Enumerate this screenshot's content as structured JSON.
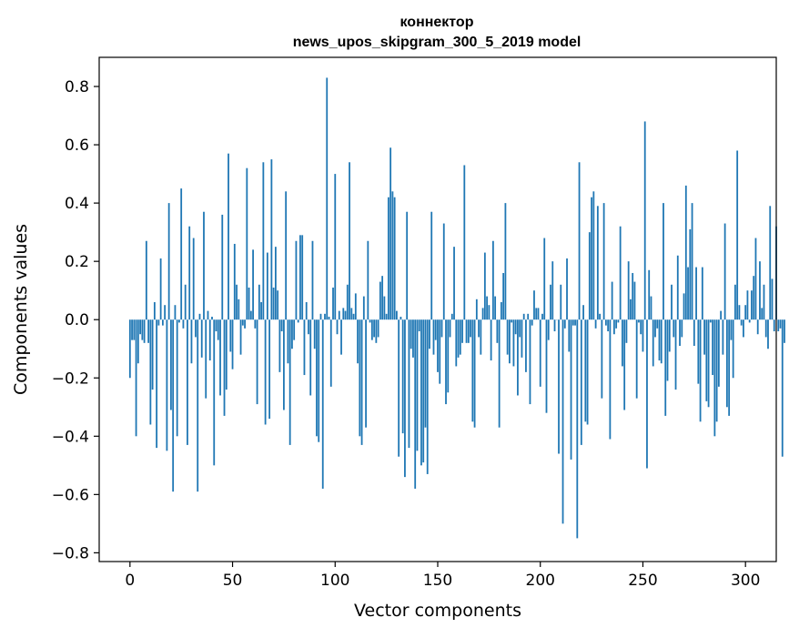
{
  "chart_data": {
    "type": "bar",
    "title_line1": "коннектор",
    "title_line2": "news_upos_skipgram_300_5_2019 model",
    "xlabel": "Vector components",
    "ylabel": "Components values",
    "xlim": [
      -15,
      315
    ],
    "ylim": [
      -0.83,
      0.9
    ],
    "xticks": [
      0,
      50,
      100,
      150,
      200,
      250,
      300
    ],
    "yticks": [
      -0.8,
      -0.6,
      -0.4,
      -0.2,
      0.0,
      0.2,
      0.4,
      0.6,
      0.8
    ],
    "ytick_labels": [
      "−0.8",
      "−0.6",
      "−0.4",
      "−0.2",
      "0.0",
      "0.2",
      "0.4",
      "0.6",
      "0.8"
    ],
    "bar_color": "#1f77b4",
    "grid": false,
    "values": [
      -0.2,
      -0.07,
      -0.07,
      -0.4,
      -0.15,
      -0.05,
      -0.07,
      -0.08,
      0.27,
      -0.08,
      -0.36,
      -0.24,
      0.06,
      -0.44,
      -0.02,
      0.21,
      -0.02,
      0.05,
      -0.45,
      0.4,
      -0.31,
      -0.59,
      0.05,
      -0.4,
      -0.01,
      0.45,
      -0.03,
      0.12,
      -0.43,
      0.32,
      -0.15,
      0.28,
      -0.06,
      -0.59,
      0.02,
      -0.13,
      0.37,
      -0.27,
      0.03,
      -0.14,
      0.01,
      -0.5,
      -0.04,
      -0.07,
      -0.26,
      0.36,
      -0.33,
      -0.24,
      0.57,
      -0.11,
      -0.17,
      0.26,
      0.12,
      0.07,
      -0.12,
      -0.02,
      -0.03,
      0.52,
      0.11,
      0.03,
      0.24,
      -0.03,
      -0.29,
      0.12,
      0.06,
      0.54,
      -0.36,
      0.23,
      -0.34,
      0.55,
      0.11,
      0.25,
      0.1,
      -0.18,
      -0.04,
      -0.31,
      0.44,
      -0.15,
      -0.43,
      -0.1,
      -0.07,
      0.27,
      -0.01,
      0.29,
      0.29,
      -0.19,
      0.06,
      -0.05,
      -0.26,
      0.27,
      -0.1,
      -0.4,
      -0.42,
      0.02,
      -0.58,
      0.02,
      0.83,
      0.01,
      -0.23,
      0.11,
      0.5,
      -0.05,
      0.03,
      -0.12,
      0.04,
      0.03,
      0.12,
      0.54,
      0.04,
      0.02,
      0.09,
      -0.15,
      -0.4,
      -0.43,
      0.08,
      -0.37,
      0.27,
      -0.01,
      -0.07,
      -0.06,
      -0.08,
      -0.06,
      0.13,
      0.15,
      0.08,
      0.02,
      0.42,
      0.59,
      0.44,
      0.42,
      0.03,
      -0.47,
      0.01,
      -0.39,
      -0.54,
      0.37,
      -0.44,
      -0.1,
      -0.13,
      -0.58,
      -0.45,
      -0.04,
      -0.5,
      -0.49,
      -0.37,
      -0.53,
      -0.1,
      0.37,
      -0.12,
      -0.07,
      -0.18,
      -0.22,
      -0.06,
      0.33,
      -0.29,
      -0.25,
      -0.06,
      0.02,
      0.25,
      -0.16,
      -0.13,
      -0.12,
      -0.08,
      0.53,
      -0.08,
      -0.08,
      -0.06,
      -0.35,
      -0.37,
      0.07,
      -0.06,
      -0.12,
      0.04,
      0.23,
      0.08,
      0.05,
      -0.14,
      0.27,
      0.08,
      -0.08,
      -0.37,
      0.06,
      0.16,
      0.4,
      -0.12,
      -0.15,
      -0.01,
      -0.16,
      -0.05,
      -0.26,
      -0.06,
      -0.13,
      0.02,
      -0.18,
      0.02,
      -0.29,
      -0.02,
      0.1,
      0.04,
      0.04,
      -0.23,
      0.02,
      0.28,
      -0.32,
      -0.07,
      0.12,
      0.2,
      -0.04,
      0.0,
      -0.46,
      0.12,
      -0.7,
      -0.03,
      0.21,
      -0.11,
      -0.48,
      -0.02,
      -0.02,
      -0.75,
      0.54,
      -0.43,
      0.05,
      -0.35,
      -0.36,
      0.3,
      0.42,
      0.44,
      -0.03,
      0.39,
      0.02,
      -0.27,
      0.4,
      -0.02,
      -0.04,
      -0.41,
      0.13,
      -0.05,
      -0.03,
      -0.01,
      0.32,
      -0.16,
      -0.31,
      -0.08,
      0.2,
      0.07,
      0.16,
      0.13,
      -0.27,
      -0.01,
      -0.05,
      -0.11,
      0.68,
      -0.51,
      0.17,
      0.08,
      -0.16,
      -0.06,
      -0.03,
      -0.14,
      -0.15,
      0.4,
      -0.33,
      -0.21,
      -0.11,
      0.12,
      -0.06,
      -0.24,
      0.22,
      -0.09,
      -0.06,
      0.09,
      0.46,
      0.18,
      0.31,
      0.4,
      -0.09,
      0.18,
      -0.22,
      -0.35,
      0.18,
      -0.12,
      -0.28,
      -0.3,
      -0.01,
      -0.19,
      -0.4,
      -0.35,
      -0.23,
      0.03,
      -0.12,
      0.33,
      -0.3,
      -0.33,
      -0.07,
      -0.2,
      0.12,
      0.58,
      0.05,
      -0.02,
      -0.06,
      0.05,
      0.1,
      -0.01,
      0.1,
      0.15,
      0.28,
      -0.05,
      0.2,
      0.04,
      0.12,
      -0.06,
      -0.1,
      0.39,
      0.14,
      -0.04,
      0.32,
      -0.04,
      -0.03,
      -0.47,
      -0.08
    ]
  }
}
